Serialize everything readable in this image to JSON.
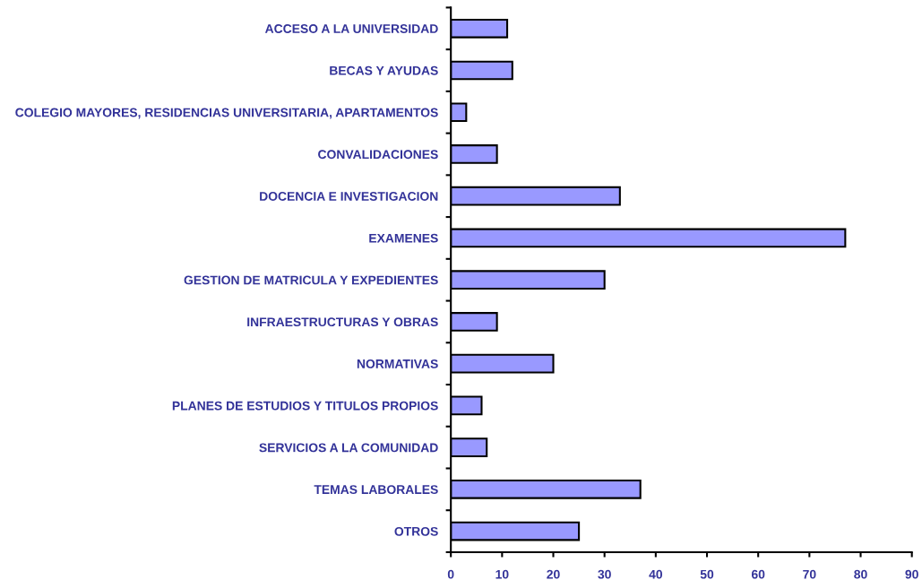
{
  "chart_data": {
    "type": "bar",
    "orientation": "horizontal",
    "categories": [
      "ACCESO A LA UNIVERSIDAD",
      "BECAS Y AYUDAS",
      "COLEGIO MAYORES, RESIDENCIAS UNIVERSITARIA, APARTAMENTOS",
      "CONVALIDACIONES",
      "DOCENCIA E INVESTIGACION",
      "EXAMENES",
      "GESTION DE MATRICULA Y EXPEDIENTES",
      "INFRAESTRUCTURAS Y OBRAS",
      "NORMATIVAS",
      "PLANES DE ESTUDIOS Y TITULOS PROPIOS",
      "SERVICIOS A LA COMUNIDAD",
      "TEMAS LABORALES",
      "OTROS"
    ],
    "values": [
      11,
      12,
      3,
      9,
      33,
      77,
      30,
      9,
      20,
      6,
      7,
      37,
      25
    ],
    "color": "#9999ff",
    "xlim": [
      0,
      90
    ],
    "xticks": [
      0,
      10,
      20,
      30,
      40,
      50,
      60,
      70,
      80,
      90
    ],
    "grid": false
  }
}
